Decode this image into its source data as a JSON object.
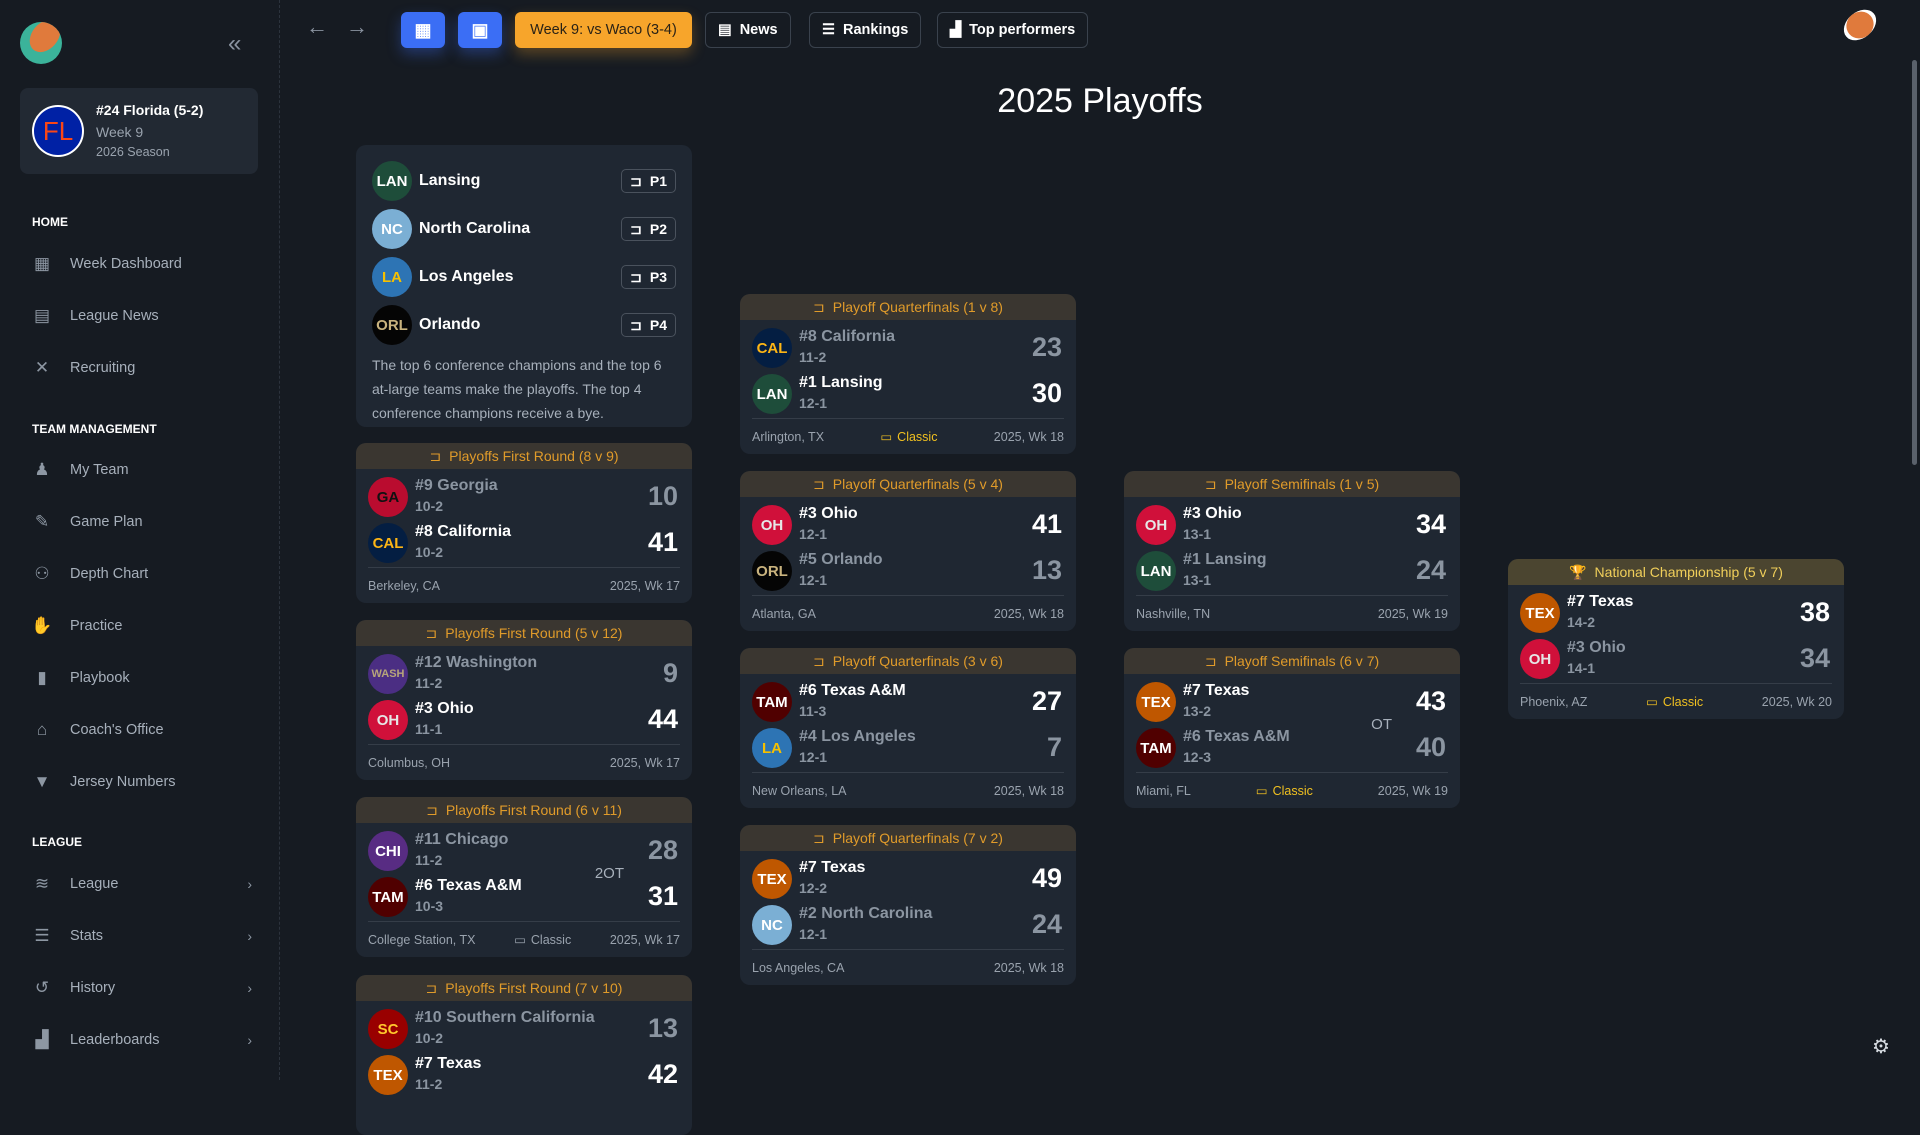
{
  "sidebar": {
    "team": {
      "initials": "FL",
      "name": "#24 Florida (5-2)",
      "week": "Week 9",
      "season": "2026 Season"
    },
    "sections": [
      {
        "label": "HOME",
        "items": [
          {
            "label": "Week Dashboard",
            "icon": "dashboard-icon"
          },
          {
            "label": "League News",
            "icon": "news-icon"
          },
          {
            "label": "Recruiting",
            "icon": "recruiting-icon"
          }
        ]
      },
      {
        "label": "TEAM MANAGEMENT",
        "items": [
          {
            "label": "My Team",
            "icon": "team-icon"
          },
          {
            "label": "Game Plan",
            "icon": "game-plan-icon"
          },
          {
            "label": "Depth Chart",
            "icon": "depth-chart-icon"
          },
          {
            "label": "Practice",
            "icon": "practice-icon"
          },
          {
            "label": "Playbook",
            "icon": "playbook-icon"
          },
          {
            "label": "Coach's Office",
            "icon": "coach-office-icon"
          },
          {
            "label": "Jersey Numbers",
            "icon": "jersey-icon"
          }
        ]
      },
      {
        "label": "LEAGUE",
        "items": [
          {
            "label": "League",
            "icon": "layers-icon",
            "chevron": true
          },
          {
            "label": "Stats",
            "icon": "database-icon",
            "chevron": true
          },
          {
            "label": "History",
            "icon": "history-icon",
            "chevron": true
          },
          {
            "label": "Leaderboards",
            "icon": "leaderboard-icon",
            "chevron": true
          }
        ]
      }
    ]
  },
  "topbar": {
    "week_button": "Week 9: vs Waco (3-4)",
    "news": "News",
    "rankings": "Rankings",
    "top_performers": "Top performers"
  },
  "page_title": "2025 Playoffs",
  "seeds": {
    "teams": [
      {
        "abbr": "LAN",
        "name": "Lansing",
        "seed": "P1",
        "bg": "#1e4d3a",
        "fg": "#ffffff"
      },
      {
        "abbr": "NC",
        "name": "North Carolina",
        "seed": "P2",
        "bg": "#7bafd4",
        "fg": "#ffffff"
      },
      {
        "abbr": "LA",
        "name": "Los Angeles",
        "seed": "P3",
        "bg": "#2d74b4",
        "fg": "#f5c000"
      },
      {
        "abbr": "ORL",
        "name": "Orlando",
        "seed": "P4",
        "bg": "#050505",
        "fg": "#c9b37e"
      }
    ],
    "note": "The top 6 conference champions and the top 6 at-large teams make the playoffs. The top 4 conference champions receive a bye."
  },
  "colors": {
    "accent": "#e09b2a",
    "championship": "#f0cf5a",
    "card": "#1f2732",
    "background": "#161b22"
  },
  "games": [
    {
      "title": "Playoffs First Round (8 v 9)",
      "teams": [
        {
          "abbr": "GA",
          "name": "#9 Georgia",
          "record": "10-2",
          "score": "10",
          "bg": "#ba0c2f",
          "fg": "#111111",
          "winner": false
        },
        {
          "abbr": "CAL",
          "name": "#8 California",
          "record": "10-2",
          "score": "41",
          "bg": "#041e42",
          "fg": "#fdb515",
          "winner": true
        }
      ],
      "location": "Berkeley, CA",
      "when": "2025, Wk 17"
    },
    {
      "title": "Playoffs First Round (5 v 12)",
      "teams": [
        {
          "abbr": "WASH",
          "name": "#12 Washington",
          "record": "11-2",
          "score": "9",
          "bg": "#4b2e83",
          "fg": "#b7a57a",
          "winner": false
        },
        {
          "abbr": "OH",
          "name": "#3 Ohio",
          "record": "11-1",
          "score": "44",
          "bg": "#d0103a",
          "fg": "#e6e6e6",
          "winner": true
        }
      ],
      "location": "Columbus, OH",
      "when": "2025, Wk 17"
    },
    {
      "title": "Playoffs First Round (6 v 11)",
      "teams": [
        {
          "abbr": "CHI",
          "name": "#11 Chicago",
          "record": "11-2",
          "score": "28",
          "bg": "#582c83",
          "fg": "#ffffff",
          "winner": false
        },
        {
          "abbr": "TAM",
          "name": "#6 Texas A&M",
          "record": "10-3",
          "score": "31",
          "bg": "#500000",
          "fg": "#ffffff",
          "winner": true
        }
      ],
      "overtime": "2OT",
      "classic": "Classic",
      "classic_color": "#9aa3ae",
      "location": "College Station, TX",
      "when": "2025, Wk 17"
    },
    {
      "title": "Playoffs First Round (7 v 10)",
      "teams": [
        {
          "abbr": "SC",
          "name": "#10 Southern California",
          "record": "10-2",
          "score": "13",
          "bg": "#990000",
          "fg": "#ffc72c",
          "winner": false
        },
        {
          "abbr": "TEX",
          "name": "#7 Texas",
          "record": "11-2",
          "score": "42",
          "bg": "#bf5700",
          "fg": "#ffffff",
          "winner": true
        }
      ],
      "location": "",
      "when": ""
    },
    {
      "title": "Playoff Quarterfinals (1 v 8)",
      "teams": [
        {
          "abbr": "CAL",
          "name": "#8 California",
          "record": "11-2",
          "score": "23",
          "bg": "#041e42",
          "fg": "#fdb515",
          "winner": false
        },
        {
          "abbr": "LAN",
          "name": "#1 Lansing",
          "record": "12-1",
          "score": "30",
          "bg": "#1e4d3a",
          "fg": "#ffffff",
          "winner": true
        }
      ],
      "classic": "Classic",
      "classic_color": "#f0c020",
      "location": "Arlington, TX",
      "when": "2025, Wk 18"
    },
    {
      "title": "Playoff Quarterfinals (5 v 4)",
      "teams": [
        {
          "abbr": "OH",
          "name": "#3 Ohio",
          "record": "12-1",
          "score": "41",
          "bg": "#d0103a",
          "fg": "#e6e6e6",
          "winner": true
        },
        {
          "abbr": "ORL",
          "name": "#5 Orlando",
          "record": "12-1",
          "score": "13",
          "bg": "#050505",
          "fg": "#c9b37e",
          "winner": false
        }
      ],
      "location": "Atlanta, GA",
      "when": "2025, Wk 18"
    },
    {
      "title": "Playoff Quarterfinals (3 v 6)",
      "teams": [
        {
          "abbr": "TAM",
          "name": "#6 Texas A&M",
          "record": "11-3",
          "score": "27",
          "bg": "#500000",
          "fg": "#ffffff",
          "winner": true
        },
        {
          "abbr": "LA",
          "name": "#4 Los Angeles",
          "record": "12-1",
          "score": "7",
          "bg": "#2d74b4",
          "fg": "#f5c000",
          "winner": false
        }
      ],
      "location": "New Orleans, LA",
      "when": "2025, Wk 18"
    },
    {
      "title": "Playoff Quarterfinals (7 v 2)",
      "teams": [
        {
          "abbr": "TEX",
          "name": "#7 Texas",
          "record": "12-2",
          "score": "49",
          "bg": "#bf5700",
          "fg": "#ffffff",
          "winner": true
        },
        {
          "abbr": "NC",
          "name": "#2 North Carolina",
          "record": "12-1",
          "score": "24",
          "bg": "#7bafd4",
          "fg": "#ffffff",
          "winner": false
        }
      ],
      "location": "Los Angeles, CA",
      "when": "2025, Wk 18"
    },
    {
      "title": "Playoff Semifinals (1 v 5)",
      "teams": [
        {
          "abbr": "OH",
          "name": "#3 Ohio",
          "record": "13-1",
          "score": "34",
          "bg": "#d0103a",
          "fg": "#e6e6e6",
          "winner": true
        },
        {
          "abbr": "LAN",
          "name": "#1 Lansing",
          "record": "13-1",
          "score": "24",
          "bg": "#1e4d3a",
          "fg": "#ffffff",
          "winner": false
        }
      ],
      "location": "Nashville, TN",
      "when": "2025, Wk 19"
    },
    {
      "title": "Playoff Semifinals (6 v 7)",
      "teams": [
        {
          "abbr": "TEX",
          "name": "#7 Texas",
          "record": "13-2",
          "score": "43",
          "bg": "#bf5700",
          "fg": "#ffffff",
          "winner": true
        },
        {
          "abbr": "TAM",
          "name": "#6 Texas A&M",
          "record": "12-3",
          "score": "40",
          "bg": "#500000",
          "fg": "#ffffff",
          "winner": false
        }
      ],
      "overtime": "OT",
      "classic": "Classic",
      "classic_color": "#f0c020",
      "location": "Miami, FL",
      "when": "2025, Wk 19"
    },
    {
      "title": "National Championship (5 v 7)",
      "championship": true,
      "teams": [
        {
          "abbr": "TEX",
          "name": "#7 Texas",
          "record": "14-2",
          "score": "38",
          "bg": "#bf5700",
          "fg": "#ffffff",
          "winner": true
        },
        {
          "abbr": "OH",
          "name": "#3 Ohio",
          "record": "14-1",
          "score": "34",
          "bg": "#d0103a",
          "fg": "#e6e6e6",
          "winner": false
        }
      ],
      "classic": "Classic",
      "classic_color": "#f0c020",
      "location": "Phoenix, AZ",
      "when": "2025, Wk 20"
    }
  ]
}
